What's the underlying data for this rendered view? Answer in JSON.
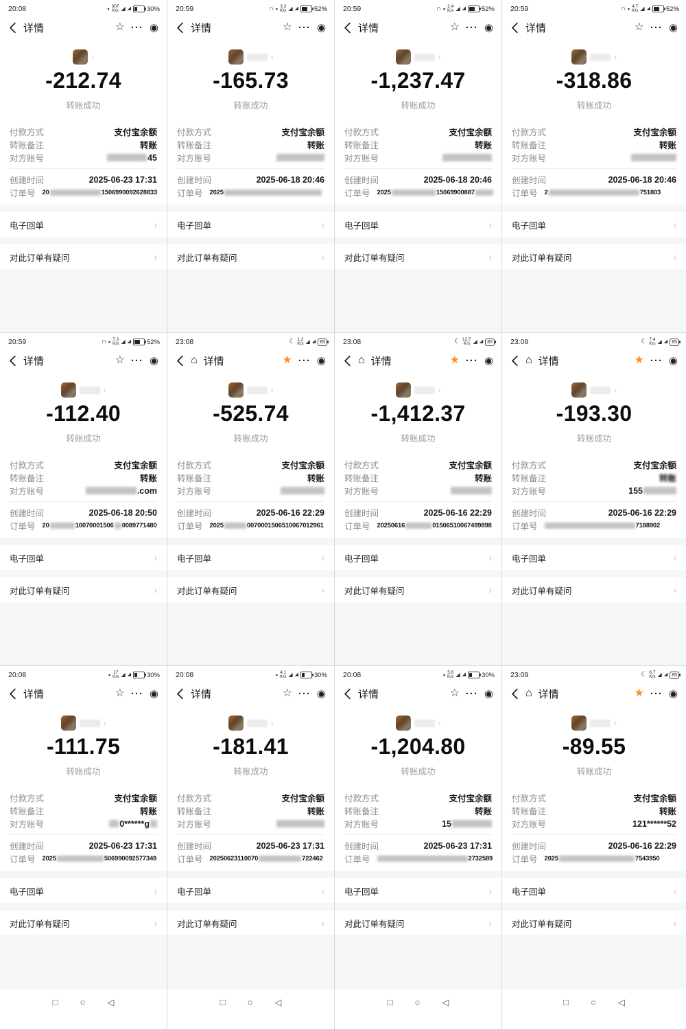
{
  "app": {
    "title": "详情",
    "success_text": "转账成功",
    "labels": {
      "payment": "付款方式",
      "remark": "转账备注",
      "account": "对方账号",
      "created": "创建时间",
      "order": "订单号"
    },
    "payment_value": "支付宝余额",
    "remark_value": "转账",
    "receipt_label": "电子回单",
    "question_label": "对此订单有疑问",
    "speed_unit": "K/s",
    "icons": {
      "back": "‹",
      "home": "⌂",
      "star_outline": "☆",
      "star_filled": "★",
      "more": "···",
      "float_window": "◉",
      "moon": "☾",
      "headphones": "∩",
      "mute": "▪",
      "signal": "◢",
      "chevron": "›",
      "avatar_chevron": "›"
    },
    "colors": {
      "accent": "#ff8f1f",
      "page_gray": "#f5f6f7"
    }
  },
  "android_nav": {
    "recents": "□",
    "home": "○",
    "back": "◁"
  },
  "cells": [
    {
      "time": "20:08",
      "speed": "307",
      "battery_pct": "30%",
      "battery_fill": 30,
      "battery_box": "",
      "moon": false,
      "headphones": false,
      "mute": true,
      "home": false,
      "star_filled": false,
      "name_patch": false,
      "amount": "-212.74",
      "created": "2025-06-23 17:31",
      "remark_blur": false,
      "account": [
        {
          "b": 58
        },
        {
          "t": "45"
        }
      ],
      "order": [
        {
          "t": "20"
        },
        {
          "b": 74
        },
        {
          "t": "1506990092628833"
        }
      ]
    },
    {
      "time": "20:59",
      "speed": "3.3",
      "battery_pct": "52%",
      "battery_fill": 52,
      "battery_box": "",
      "moon": false,
      "headphones": true,
      "mute": true,
      "home": false,
      "star_filled": false,
      "name_patch": true,
      "amount": "-165.73",
      "created": "2025-06-18 20:46",
      "remark_blur": false,
      "account": [
        {
          "b": 70
        }
      ],
      "order": [
        {
          "t": "2025"
        },
        {
          "b": 142
        }
      ]
    },
    {
      "time": "20:59",
      "speed": "2.4",
      "battery_pct": "52%",
      "battery_fill": 52,
      "battery_box": "",
      "moon": false,
      "headphones": true,
      "mute": true,
      "home": false,
      "star_filled": false,
      "name_patch": true,
      "amount": "-1,237.47",
      "created": "2025-06-18 20:46",
      "remark_blur": false,
      "account": [
        {
          "b": 72
        }
      ],
      "order": [
        {
          "t": "2025"
        },
        {
          "b": 64
        },
        {
          "t": "15069900887"
        },
        {
          "b": 26
        }
      ]
    },
    {
      "time": "20:59",
      "speed": "4.7",
      "battery_pct": "52%",
      "battery_fill": 52,
      "battery_box": "",
      "moon": false,
      "headphones": true,
      "mute": true,
      "home": false,
      "star_filled": false,
      "name_patch": true,
      "amount": "-318.86",
      "created": "2025-06-18 20:46",
      "remark_blur": false,
      "account": [
        {
          "b": 66
        }
      ],
      "order": [
        {
          "t": "2"
        },
        {
          "b": 132
        },
        {
          "t": "751803"
        }
      ]
    },
    {
      "time": "20:59",
      "speed": "7.3",
      "battery_pct": "52%",
      "battery_fill": 52,
      "battery_box": "",
      "moon": false,
      "headphones": true,
      "mute": true,
      "home": false,
      "star_filled": false,
      "name_patch": true,
      "amount": "-112.40",
      "created": "2025-06-18 20:50",
      "remark_blur": false,
      "account": [
        {
          "b": 74
        },
        {
          "t": ".com"
        }
      ],
      "order": [
        {
          "t": "20"
        },
        {
          "b": 36
        },
        {
          "t": "10070001506"
        },
        {
          "b": 10
        },
        {
          "t": "0089771480"
        }
      ]
    },
    {
      "time": "23:08",
      "speed": "1.2",
      "battery_pct": "",
      "battery_fill": 0,
      "battery_box": "85",
      "moon": true,
      "headphones": false,
      "mute": false,
      "home": true,
      "star_filled": true,
      "name_patch": true,
      "amount": "-525.74",
      "created": "2025-06-16 22:29",
      "remark_blur": false,
      "account": [
        {
          "b": 64
        }
      ],
      "order": [
        {
          "t": "2025"
        },
        {
          "b": 32
        },
        {
          "t": "0070001506510067012961"
        }
      ]
    },
    {
      "time": "23:08",
      "speed": "12.7",
      "battery_pct": "",
      "battery_fill": 0,
      "battery_box": "85",
      "moon": true,
      "headphones": false,
      "mute": false,
      "home": true,
      "star_filled": true,
      "name_patch": true,
      "amount": "-1,412.37",
      "created": "2025-06-16 22:29",
      "remark_blur": false,
      "account": [
        {
          "b": 60
        }
      ],
      "order": [
        {
          "t": "20250616"
        },
        {
          "b": 38
        },
        {
          "t": "01506510067499898"
        }
      ]
    },
    {
      "time": "23:09",
      "speed": "7.4",
      "battery_pct": "",
      "battery_fill": 0,
      "battery_box": "85",
      "moon": true,
      "headphones": false,
      "mute": false,
      "home": true,
      "star_filled": true,
      "name_patch": true,
      "amount": "-193.30",
      "created": "2025-06-16 22:29",
      "remark_blur": true,
      "account": [
        {
          "t": "155"
        },
        {
          "b": 48
        }
      ],
      "order": [
        {
          "b": 132
        },
        {
          "t": "7188902"
        }
      ]
    },
    {
      "time": "20:08",
      "speed": "17",
      "battery_pct": "30%",
      "battery_fill": 30,
      "battery_box": "",
      "moon": false,
      "headphones": false,
      "mute": true,
      "home": false,
      "star_filled": false,
      "name_patch": true,
      "amount": "-111.75",
      "created": "2025-06-23 17:31",
      "remark_blur": false,
      "account": [
        {
          "b": 14
        },
        {
          "t": "0******g"
        },
        {
          "b": 10
        }
      ],
      "order": [
        {
          "t": "2025"
        },
        {
          "b": 68
        },
        {
          "t": "506990092577349"
        }
      ]
    },
    {
      "time": "20:08",
      "speed": "4.1",
      "battery_pct": "30%",
      "battery_fill": 30,
      "battery_box": "",
      "moon": false,
      "headphones": false,
      "mute": true,
      "home": false,
      "star_filled": false,
      "name_patch": true,
      "amount": "-181.41",
      "created": "2025-06-23 17:31",
      "remark_blur": false,
      "account": [
        {
          "b": 70
        }
      ],
      "order": [
        {
          "t": "20250623110070"
        },
        {
          "b": 62
        },
        {
          "t": "722462"
        }
      ]
    },
    {
      "time": "20:08",
      "speed": "5.6",
      "battery_pct": "30%",
      "battery_fill": 30,
      "battery_box": "",
      "moon": false,
      "headphones": false,
      "mute": true,
      "home": false,
      "star_filled": false,
      "name_patch": true,
      "amount": "-1,204.80",
      "created": "2025-06-23 17:31",
      "remark_blur": false,
      "account": [
        {
          "t": "15"
        },
        {
          "b": 58
        }
      ],
      "order": [
        {
          "b": 132
        },
        {
          "t": "2732589"
        }
      ]
    },
    {
      "time": "23:09",
      "speed": "6.7",
      "battery_pct": "",
      "battery_fill": 0,
      "battery_box": "85",
      "moon": true,
      "headphones": false,
      "mute": false,
      "home": true,
      "star_filled": true,
      "name_patch": true,
      "amount": "-89.55",
      "created": "2025-06-16 22:29",
      "remark_blur": false,
      "account": [
        {
          "t": "121******52"
        }
      ],
      "order": [
        {
          "t": "2025"
        },
        {
          "b": 110
        },
        {
          "t": "7543950"
        }
      ]
    }
  ]
}
